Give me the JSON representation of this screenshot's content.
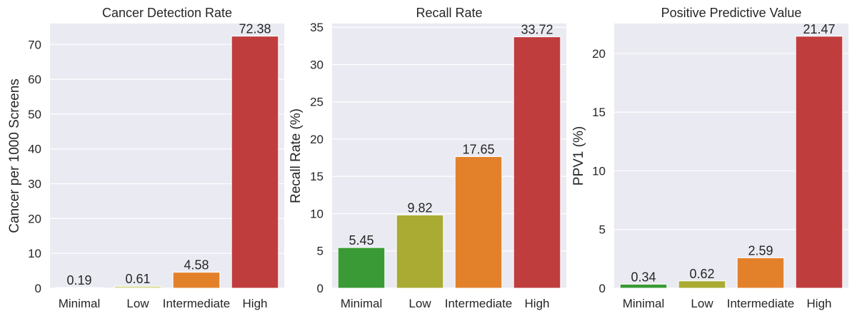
{
  "chart_data": [
    {
      "type": "bar",
      "title": "Cancer Detection Rate",
      "xlabel": "",
      "ylabel": "Cancer per 1000 Screens",
      "categories": [
        "Minimal",
        "Low",
        "Intermediate",
        "High"
      ],
      "values": [
        0.19,
        0.61,
        4.58,
        72.38
      ],
      "labels": [
        "0.19",
        "0.61",
        "4.58",
        "72.38"
      ],
      "colors": [
        "#3a9a35",
        "#d9dc98",
        "#e3812b",
        "#c03d3e"
      ],
      "ylim": [
        0,
        76
      ],
      "yticks": [
        0,
        10,
        20,
        30,
        40,
        50,
        60,
        70
      ],
      "grid": true
    },
    {
      "type": "bar",
      "title": "Recall Rate",
      "xlabel": "",
      "ylabel": "Recall Rate (%)",
      "categories": [
        "Minimal",
        "Low",
        "Intermediate",
        "High"
      ],
      "values": [
        5.45,
        9.82,
        17.65,
        33.72
      ],
      "labels": [
        "5.45",
        "9.82",
        "17.65",
        "33.72"
      ],
      "colors": [
        "#3a9a35",
        "#a9ab33",
        "#e3812b",
        "#c03d3e"
      ],
      "ylim": [
        0,
        35.5
      ],
      "yticks": [
        0,
        5,
        10,
        15,
        20,
        25,
        30,
        35
      ],
      "grid": true
    },
    {
      "type": "bar",
      "title": "Positive Predictive Value",
      "xlabel": "",
      "ylabel": "PPV1 (%)",
      "categories": [
        "Minimal",
        "Low",
        "Intermediate",
        "High"
      ],
      "values": [
        0.34,
        0.62,
        2.59,
        21.47
      ],
      "labels": [
        "0.34",
        "0.62",
        "2.59",
        "21.47"
      ],
      "colors": [
        "#3a9a35",
        "#a9ab33",
        "#e3812b",
        "#c03d3e"
      ],
      "ylim": [
        0,
        22.55
      ],
      "yticks": [
        0,
        5,
        10,
        15,
        20
      ],
      "grid": true
    }
  ]
}
